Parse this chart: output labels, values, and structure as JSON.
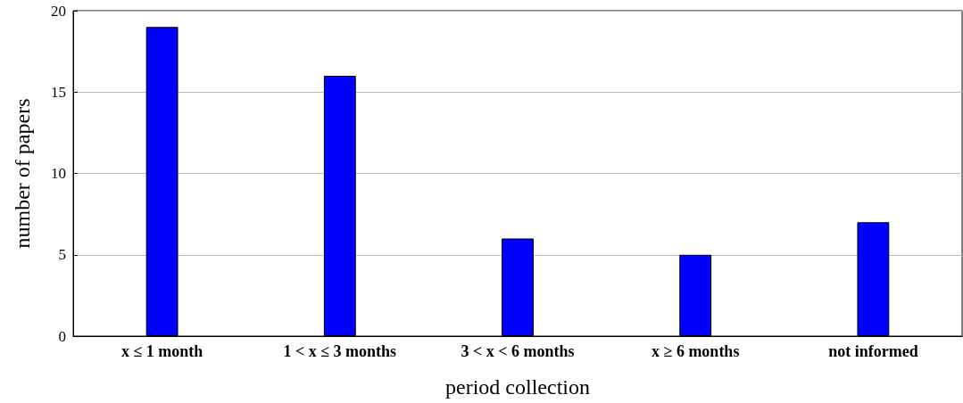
{
  "chart_data": {
    "type": "bar",
    "xlabel": "period collection",
    "ylabel": "number of papers",
    "categories": [
      "x ≤ 1 month",
      "1 < x ≤ 3 months",
      "3 < x < 6 months",
      "x ≥ 6 months",
      "not informed"
    ],
    "values": [
      19,
      16,
      6,
      5,
      7
    ],
    "color": "#0000ff",
    "ylim": [
      0,
      20
    ],
    "yticks": [
      0,
      5,
      10,
      15,
      20
    ],
    "grid": "y"
  }
}
